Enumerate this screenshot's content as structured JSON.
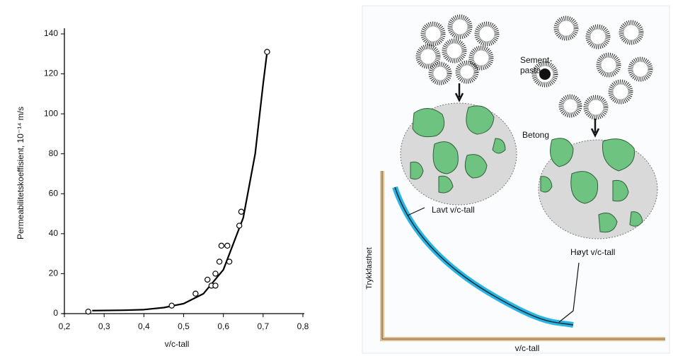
{
  "chart_data": {
    "type": "scatter",
    "xlabel": "v/c-tall",
    "ylabel": "Permeabilitetskoeffisient, 10⁻¹⁴ m/s",
    "xlim": [
      0.2,
      0.8
    ],
    "xticks": [
      {
        "value": 0.2,
        "label": "0,2"
      },
      {
        "value": 0.3,
        "label": "0,3"
      },
      {
        "value": 0.4,
        "label": "0,4"
      },
      {
        "value": 0.5,
        "label": "0,5"
      },
      {
        "value": 0.6,
        "label": "0,6"
      },
      {
        "value": 0.7,
        "label": "0,7"
      },
      {
        "value": 0.8,
        "label": "0,8"
      }
    ],
    "ylim": [
      0,
      140
    ],
    "yticks": [
      0,
      20,
      40,
      60,
      80,
      100,
      120,
      140
    ],
    "grid": false,
    "series": [
      {
        "color": "#000000",
        "x": [
          0.26,
          0.47,
          0.53,
          0.56,
          0.57,
          0.58,
          0.58,
          0.59,
          0.595,
          0.61,
          0.615,
          0.64,
          0.645,
          0.71
        ],
        "values": [
          1,
          4,
          10,
          17,
          14,
          14,
          20,
          26,
          34,
          34,
          26,
          44,
          51,
          131
        ]
      }
    ],
    "curve": {
      "color": "#000000",
      "x": [
        0.27,
        0.35,
        0.4,
        0.45,
        0.5,
        0.55,
        0.6,
        0.65,
        0.68,
        0.7,
        0.71
      ],
      "values": [
        1.5,
        1.7,
        2,
        3,
        5,
        10,
        22,
        48,
        80,
        115,
        131
      ]
    }
  },
  "illustration": {
    "cement_paste": "Sement-\npasta",
    "concrete": "Betong",
    "low_wc": "Lavt v/c-tall",
    "high_wc": "Høyt v/c-tall",
    "y_axis": "Trykkfasthet",
    "x_axis": "v/c-tall"
  }
}
